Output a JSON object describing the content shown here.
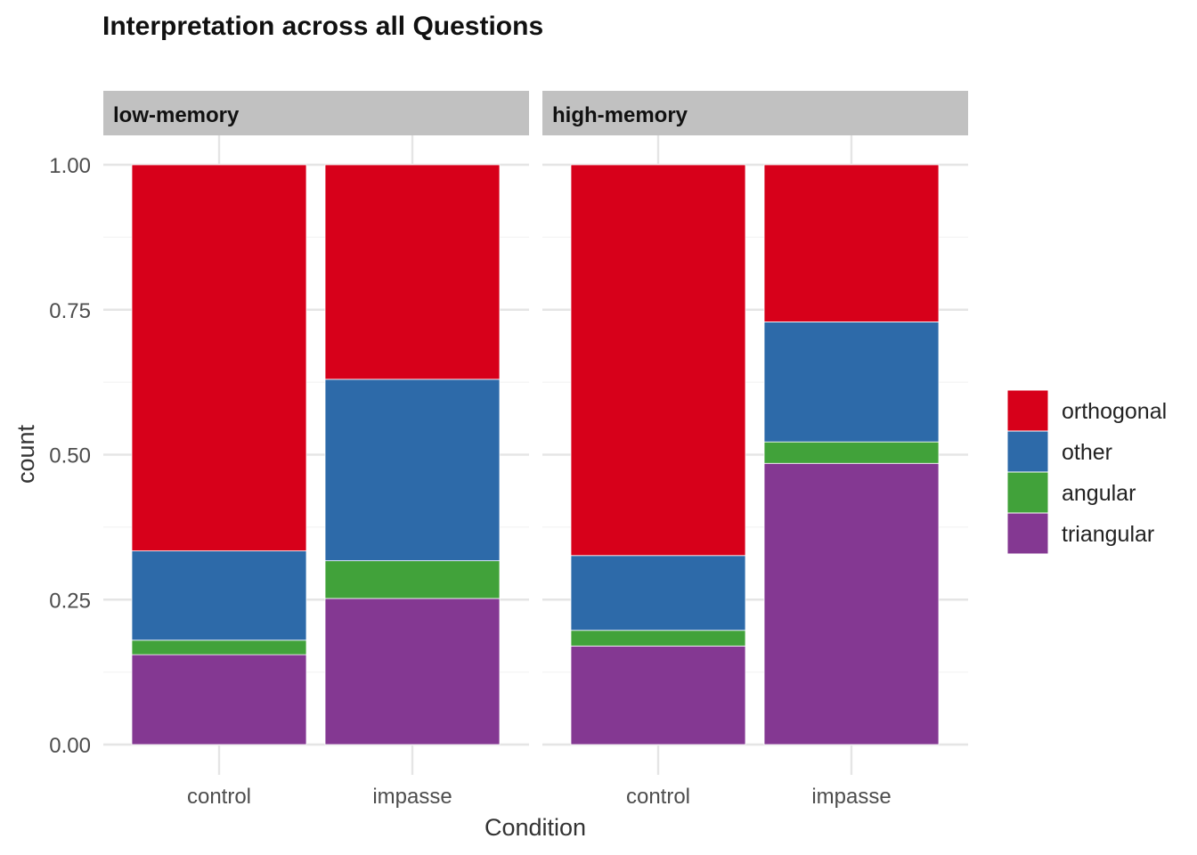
{
  "chart_data": {
    "type": "bar",
    "stacked": true,
    "title": "Interpretation across all Questions",
    "xlabel": "Condition",
    "ylabel": "count",
    "ylim": [
      0,
      1
    ],
    "yticks": [
      "0.00",
      "0.25",
      "0.50",
      "0.75",
      "1.00"
    ],
    "ytick_values": [
      0,
      0.25,
      0.5,
      0.75,
      1.0
    ],
    "grid": true,
    "legend_position": "right",
    "categories": [
      "control",
      "impasse"
    ],
    "legend": [
      {
        "name": "orthogonal",
        "color": "#D7001A"
      },
      {
        "name": "other",
        "color": "#2D6AA9"
      },
      {
        "name": "angular",
        "color": "#41A23A"
      },
      {
        "name": "triangular",
        "color": "#843892"
      }
    ],
    "stack_order_bottom_to_top": [
      "triangular",
      "angular",
      "other",
      "orthogonal"
    ],
    "panels": [
      {
        "label": "low-memory",
        "series": [
          {
            "name": "triangular",
            "values": [
              0.155,
              0.252
            ]
          },
          {
            "name": "angular",
            "values": [
              0.025,
              0.065
            ]
          },
          {
            "name": "other",
            "values": [
              0.154,
              0.313
            ]
          },
          {
            "name": "orthogonal",
            "values": [
              0.666,
              0.37
            ]
          }
        ]
      },
      {
        "label": "high-memory",
        "series": [
          {
            "name": "triangular",
            "values": [
              0.17,
              0.485
            ]
          },
          {
            "name": "angular",
            "values": [
              0.027,
              0.037
            ]
          },
          {
            "name": "other",
            "values": [
              0.129,
              0.207
            ]
          },
          {
            "name": "orthogonal",
            "values": [
              0.674,
              0.271
            ]
          }
        ]
      }
    ]
  }
}
